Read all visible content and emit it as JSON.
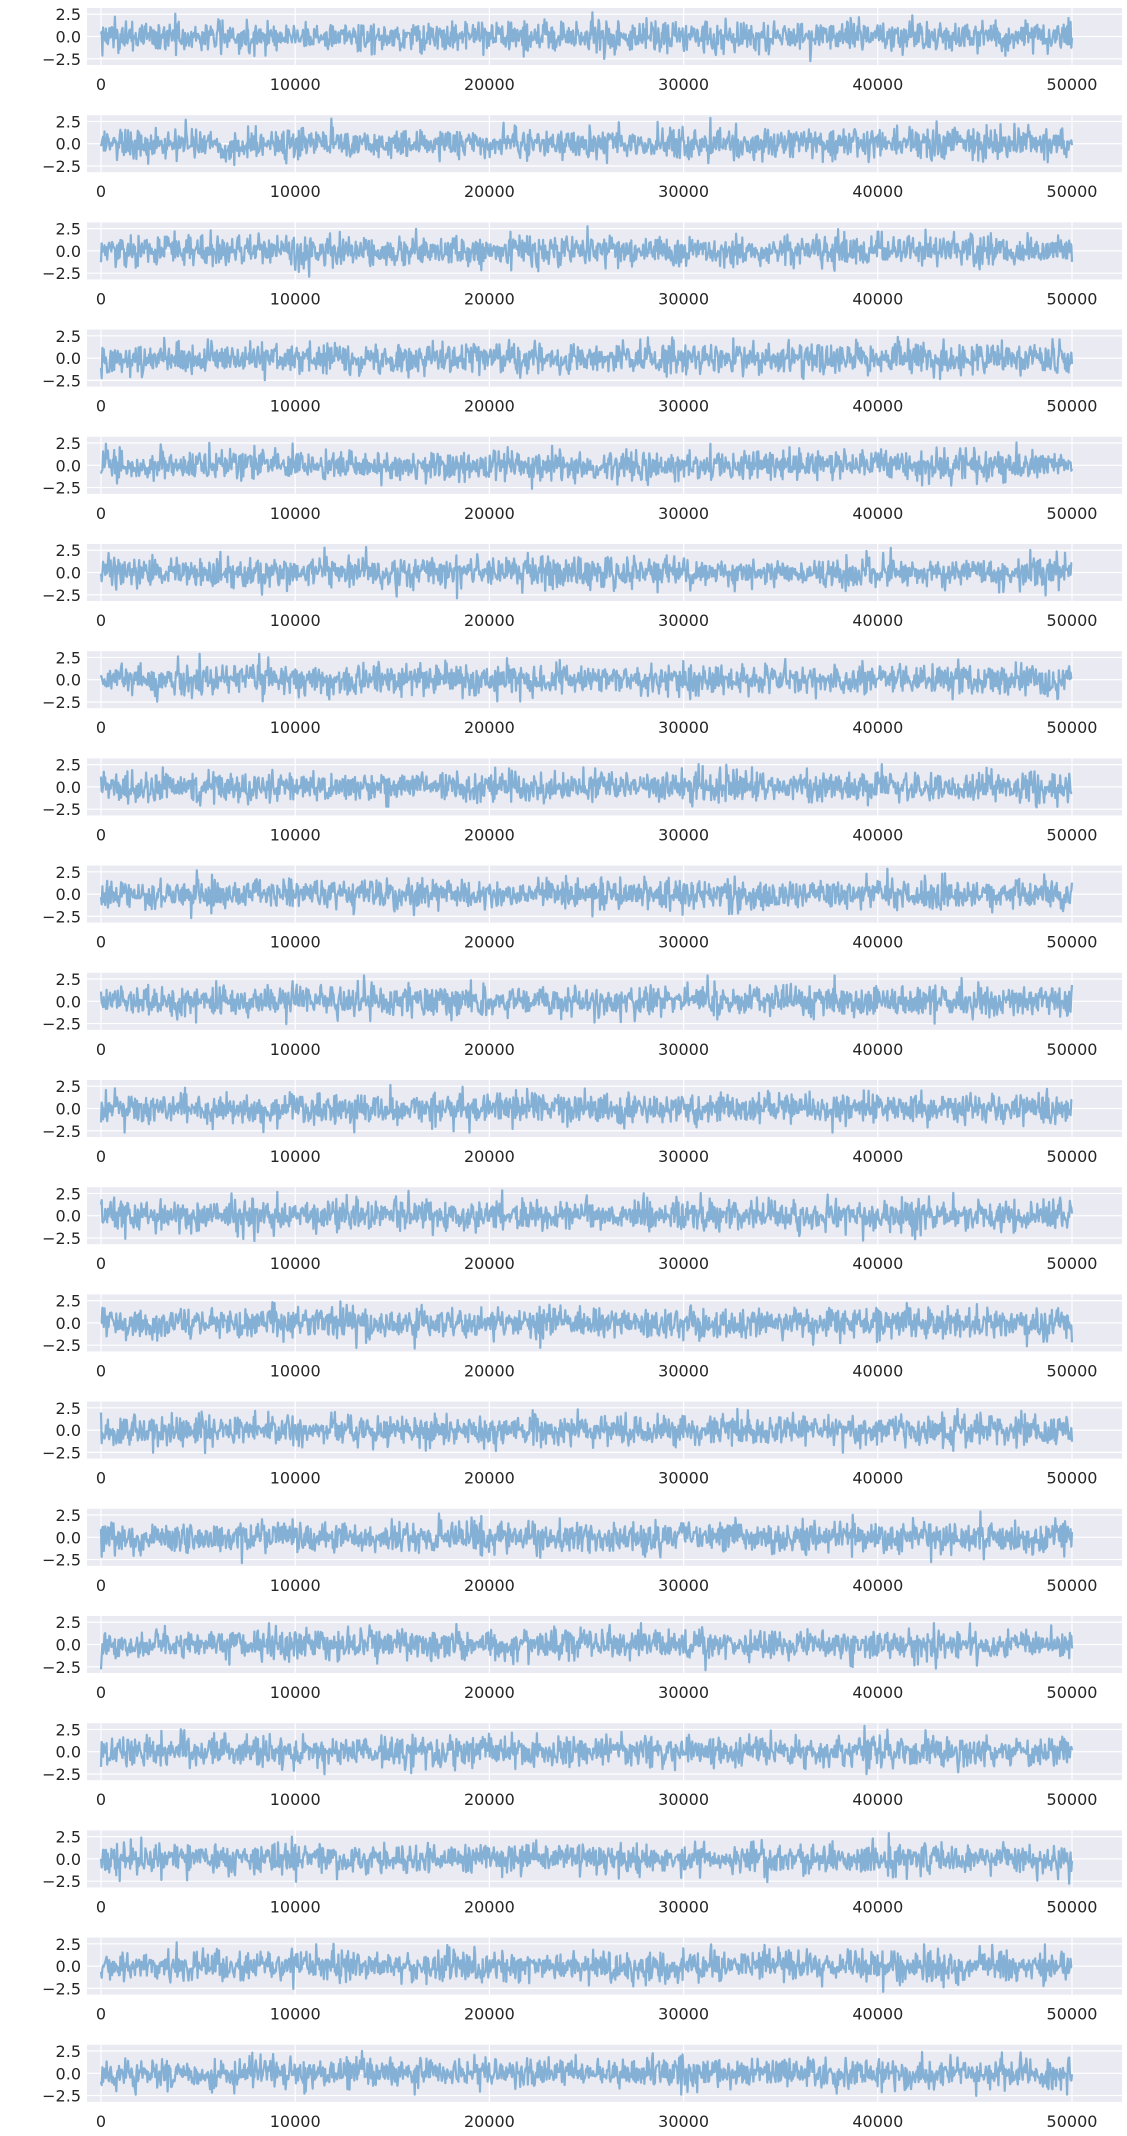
{
  "chart_data": {
    "type": "line",
    "panel_count": 20,
    "x_range": [
      0,
      49999
    ],
    "x_ticks": [
      0,
      10000,
      20000,
      30000,
      40000,
      50000
    ],
    "x_tick_labels": [
      "0",
      "10000",
      "20000",
      "30000",
      "40000",
      "50000"
    ],
    "y_ticks": [
      -2.5,
      0.0,
      2.5
    ],
    "y_tick_labels": [
      "−2.5",
      "0.0",
      "2.5"
    ],
    "y_range": [
      -3.2,
      3.2
    ],
    "grid": true,
    "title": "",
    "xlabel": "",
    "ylabel": "",
    "series_description": "each panel shows one noisy series of roughly standard-normal values fluctuating around 0 between about -3 and 3",
    "line_color": "#7eadd3",
    "background_color": "#eaeaf2",
    "grid_color": "#ffffff"
  }
}
